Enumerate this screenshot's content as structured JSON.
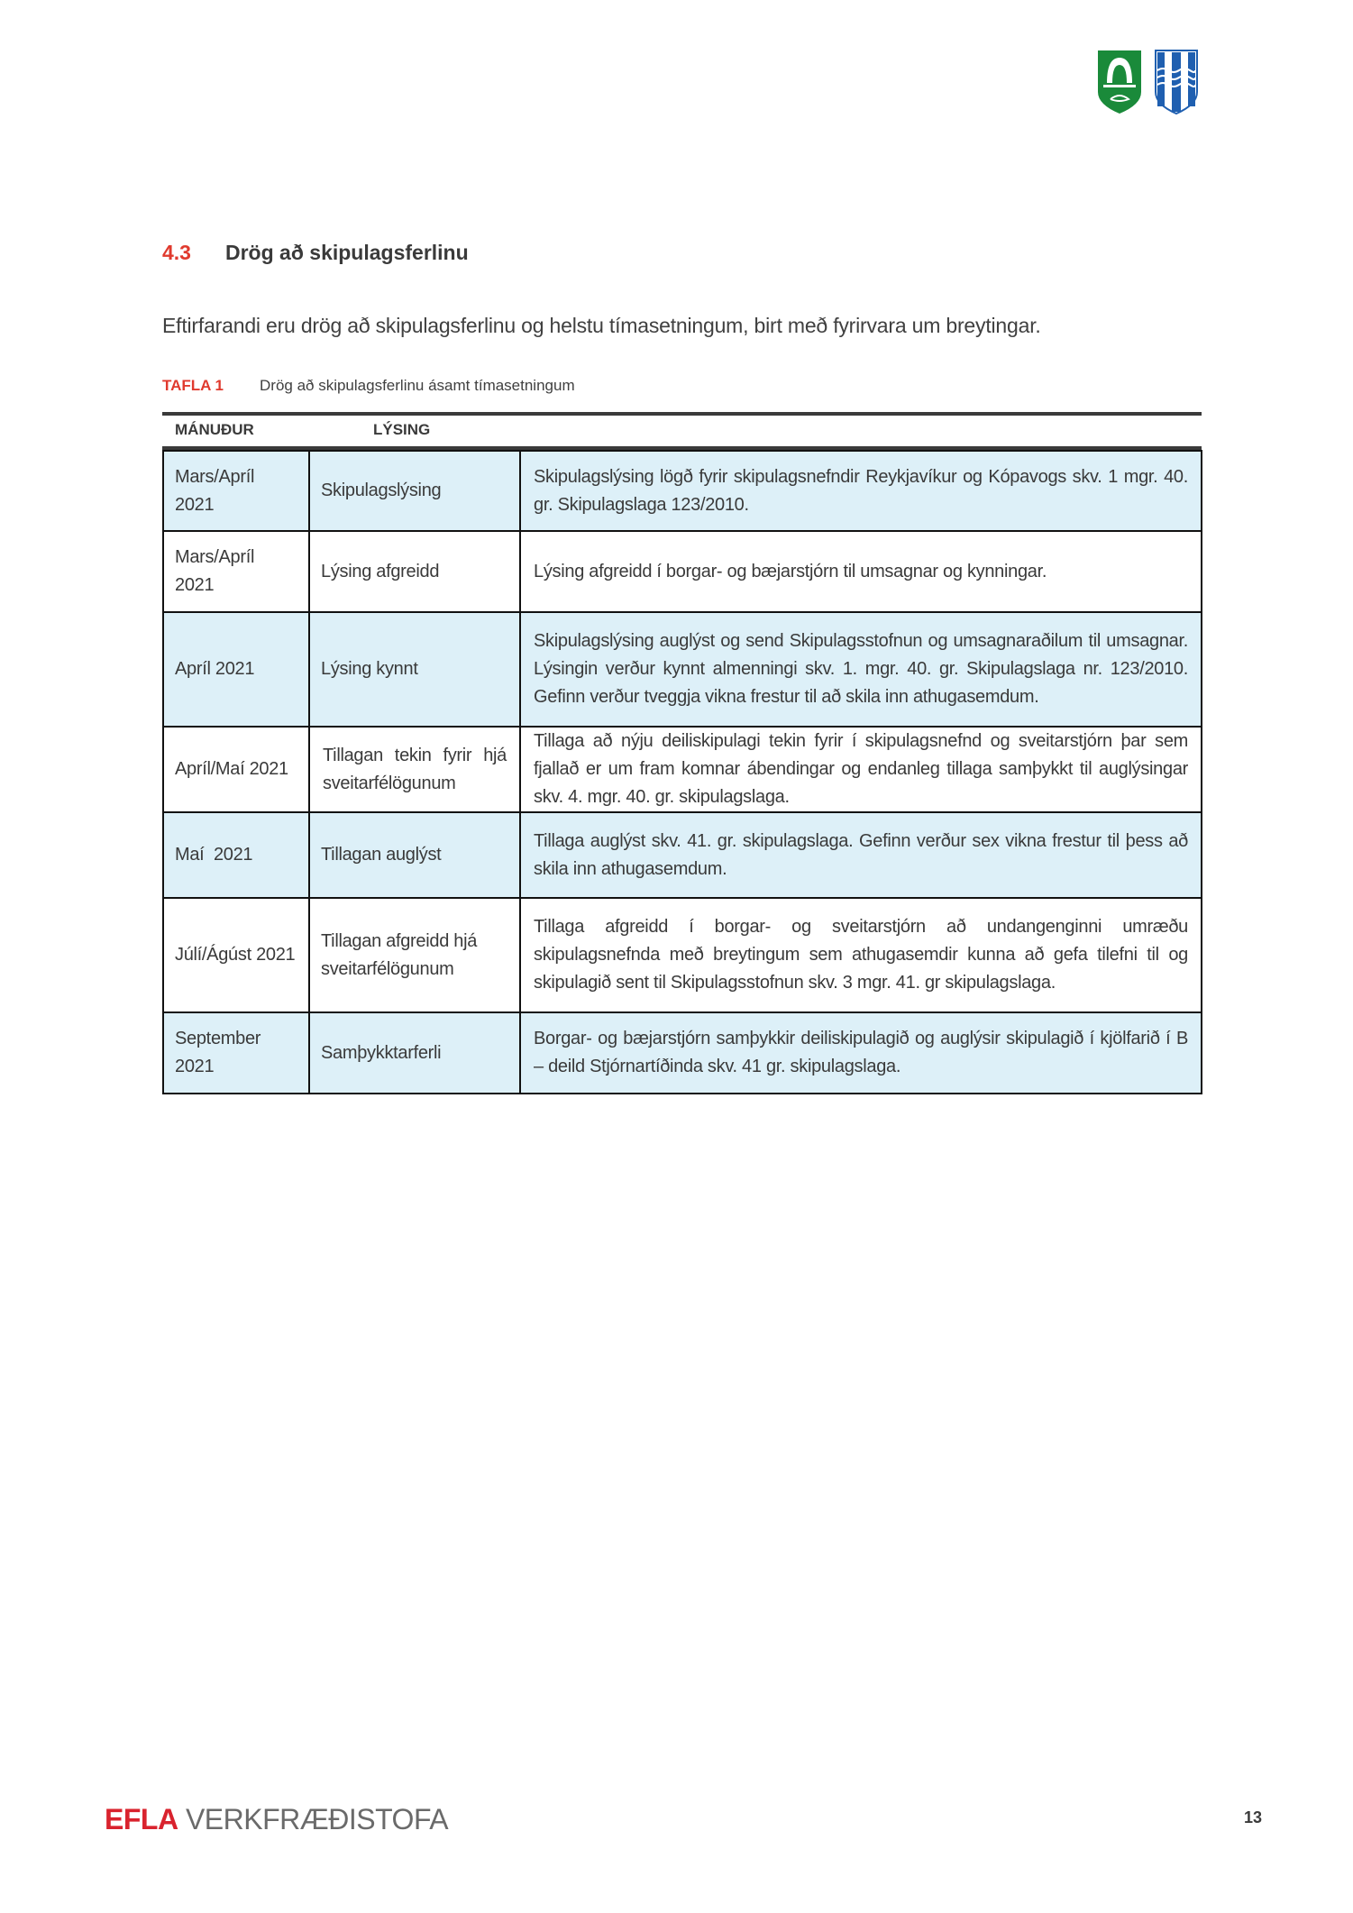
{
  "header": {
    "logos": [
      "green-municipal-crest",
      "blue-municipal-crest"
    ]
  },
  "section": {
    "number": "4.3",
    "title": "Drög að skipulagsferlinu"
  },
  "intro": "Eftirfarandi eru drög að skipulagsferlinu og helstu tímasetningum, birt með fyrirvara um breytingar.",
  "table_caption": {
    "label": "TAFLA 1",
    "text": "Drög að skipulagsferlinu ásamt tímasetningum"
  },
  "table": {
    "columns": [
      "MÁNUÐUR",
      "LÝSING"
    ],
    "rows": [
      {
        "month": "Mars/Apríl 2021",
        "step": "Skipulagslýsing",
        "desc": "Skipulagslýsing lögð fyrir skipulagsnefndir Reykjavíkur og Kópavogs skv. 1 mgr. 40. gr. Skipulagslaga 123/2010."
      },
      {
        "month": "Mars/Apríl 2021",
        "step": "Lýsing afgreidd",
        "desc": "Lýsing afgreidd í borgar- og bæjarstjórn til umsagnar og kynningar."
      },
      {
        "month": "Apríl 2021",
        "step": "Lýsing kynnt",
        "desc": "Skipulagslýsing auglýst og send Skipulagsstofnun og umsagnaraðilum til umsagnar. Lýsingin verður kynnt almenningi skv. 1. mgr. 40. gr. Skipulagslaga nr. 123/2010. Gefinn verður tveggja vikna frestur til að skila inn athugasemdum."
      },
      {
        "month": "Apríl/Maí 2021",
        "step": "Tillagan tekin fyrir hjá sveitarfélögunum",
        "desc": "Tillaga að nýju deiliskipulagi tekin fyrir í skipulagsnefnd og sveitarstjórn þar sem fjallað er um fram komnar ábendingar og endanleg tillaga samþykkt til auglýsingar skv. 4. mgr. 40. gr. skipulagslaga."
      },
      {
        "month": "Maí  2021",
        "step": "Tillagan auglýst",
        "desc": "Tillaga auglýst skv. 41. gr. skipulagslaga. Gefinn verður sex vikna frestur til þess að skila inn athugasemdum."
      },
      {
        "month": "Júlí/Ágúst 2021",
        "step": "Tillagan afgreidd hjá sveitarfélögunum",
        "desc": "Tillaga afgreidd í borgar- og sveitarstjórn að undangenginni umræðu skipulagsnefnda með breytingum sem athugasemdir kunna að gefa tilefni til og skipulagið sent til Skipulagsstofnun skv. 3 mgr. 41. gr skipulagslaga."
      },
      {
        "month": "September 2021",
        "step": "Samþykktarferli",
        "desc": "Borgar- og bæjarstjórn samþykkir deiliskipulagið og auglýsir skipulagið í kjölfarið í B – deild Stjórnartíðinda skv. 41 gr. skipulagslaga."
      }
    ]
  },
  "footer": {
    "logo_efla": "EFLA",
    "logo_rest": " VERKFRÆÐISTOFA",
    "page_number": "13"
  },
  "colors": {
    "accent": "#e03a2e",
    "row_highlight": "#ddf0f8",
    "crest_green": "#1a8a3a",
    "crest_blue": "#1f5fb0"
  }
}
